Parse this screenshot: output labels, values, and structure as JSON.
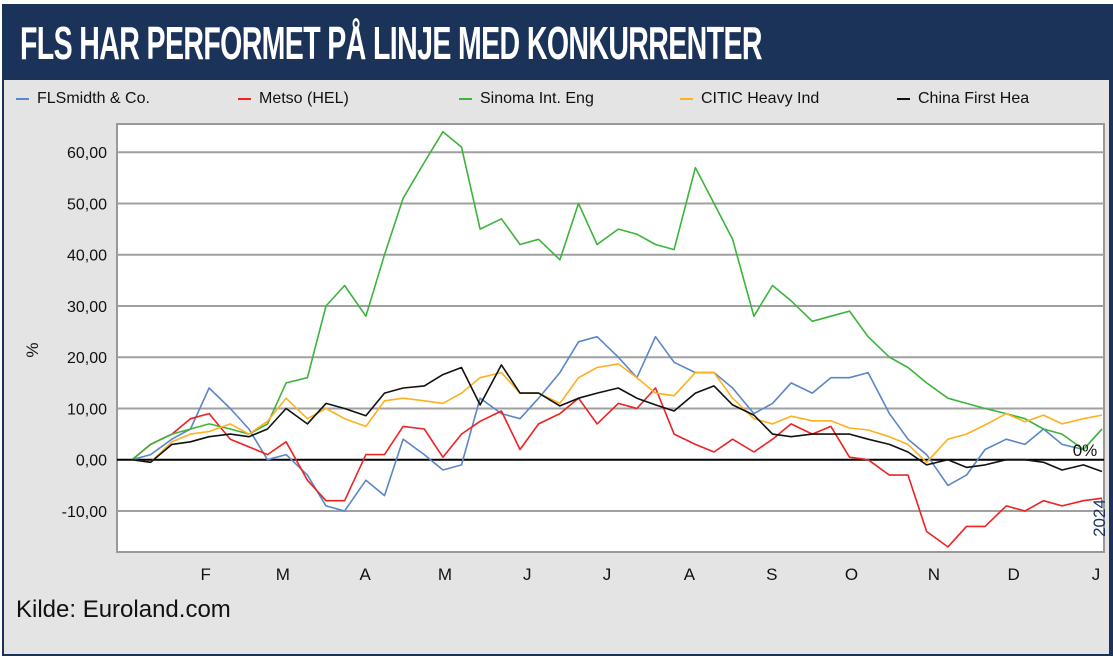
{
  "header": {
    "title": "FLS HAR PERFORMET PÅ LINJE MED KONKURRENTER"
  },
  "source": "Kilde: Euroland.com",
  "chart_data": {
    "type": "line",
    "title": "FLS HAR PERFORMET PÅ LINJE MED KONKURRENTER",
    "ylabel": "%",
    "xlabel": "",
    "year_label": "2024",
    "zero_label": "0%",
    "ylim": [
      -18,
      65.5
    ],
    "xlim": [
      "2024-01-02",
      "2025-01-01"
    ],
    "grid": "horizontal",
    "legend_placement": "top",
    "y_ticks": [
      -10,
      0,
      10,
      20,
      30,
      40,
      50,
      60
    ],
    "y_tick_labels": [
      "-10,00",
      "0,00",
      "10,00",
      "20,00",
      "30,00",
      "40,00",
      "50,00",
      "60,00"
    ],
    "x_ticks": [
      {
        "label": "F",
        "date": "2024-02-01"
      },
      {
        "label": "M",
        "date": "2024-03-01"
      },
      {
        "label": "A",
        "date": "2024-04-01"
      },
      {
        "label": "M",
        "date": "2024-05-01"
      },
      {
        "label": "J",
        "date": "2024-06-01"
      },
      {
        "label": "J",
        "date": "2024-07-01"
      },
      {
        "label": "A",
        "date": "2024-08-01"
      },
      {
        "label": "S",
        "date": "2024-09-01"
      },
      {
        "label": "O",
        "date": "2024-10-01"
      },
      {
        "label": "N",
        "date": "2024-11-01"
      },
      {
        "label": "D",
        "date": "2024-12-01"
      },
      {
        "label": "J",
        "date": "2025-01-01"
      }
    ],
    "x": [
      "2024-01-02",
      "2024-01-09",
      "2024-01-17",
      "2024-01-24",
      "2024-01-31",
      "2024-02-08",
      "2024-02-15",
      "2024-02-22",
      "2024-02-29",
      "2024-03-08",
      "2024-03-15",
      "2024-03-22",
      "2024-03-30",
      "2024-04-06",
      "2024-04-13",
      "2024-04-21",
      "2024-04-28",
      "2024-05-05",
      "2024-05-12",
      "2024-05-20",
      "2024-05-27",
      "2024-06-03",
      "2024-06-11",
      "2024-06-18",
      "2024-06-25",
      "2024-07-03",
      "2024-07-10",
      "2024-07-17",
      "2024-07-24",
      "2024-08-01",
      "2024-08-08",
      "2024-08-15",
      "2024-08-23",
      "2024-08-30",
      "2024-09-06",
      "2024-09-14",
      "2024-09-21",
      "2024-09-28",
      "2024-10-05",
      "2024-10-13",
      "2024-10-20",
      "2024-10-27",
      "2024-11-04",
      "2024-11-11",
      "2024-11-18",
      "2024-11-26",
      "2024-12-03",
      "2024-12-10",
      "2024-12-17",
      "2024-12-25",
      "2025-01-01"
    ],
    "series": [
      {
        "name": "FLSmidth & Co.",
        "color": "#5b86c8",
        "values": [
          0,
          1,
          4,
          6,
          14,
          10,
          6,
          0,
          1,
          -3,
          -9,
          -10,
          -4,
          -7,
          4,
          1,
          -2,
          -1,
          12,
          9,
          8,
          12,
          17,
          23,
          24,
          20,
          16,
          24,
          19,
          17,
          17,
          14,
          9,
          11,
          15,
          13,
          16,
          16,
          17,
          9,
          4,
          1,
          -5,
          -3,
          2,
          4,
          3,
          6,
          3,
          2,
          6
        ]
      },
      {
        "name": "Metso (HEL)",
        "color": "#ee2222",
        "values": [
          0,
          3,
          5,
          8,
          9,
          4,
          2.5,
          1,
          3.5,
          -4,
          -8,
          -8,
          1,
          1,
          6.5,
          6,
          0.5,
          5,
          7.5,
          9.5,
          2,
          7,
          9,
          12,
          7,
          11,
          10,
          14,
          5,
          3,
          1.5,
          4,
          1.5,
          4,
          7,
          5,
          6.5,
          0.5,
          0,
          -3,
          -3,
          -14,
          -17,
          -13,
          -13,
          -9,
          -10,
          -8,
          -9,
          -8,
          -7.5
        ]
      },
      {
        "name": "Sinoma Int. Eng",
        "color": "#3cb43c",
        "values": [
          0,
          3,
          5,
          6,
          7,
          6,
          5,
          7,
          15,
          16,
          30,
          34,
          28,
          40,
          51,
          58,
          64,
          61,
          45,
          47,
          42,
          43,
          39,
          50,
          42,
          45,
          44,
          42,
          41,
          57,
          50,
          43,
          28,
          34,
          31,
          27,
          28,
          29,
          24,
          20,
          18,
          15,
          12,
          11,
          10,
          9,
          8,
          6,
          5,
          2,
          6
        ]
      },
      {
        "name": "CITIC Heavy Ind",
        "color": "#ffb020",
        "values": [
          0,
          -0.5,
          3.5,
          5,
          5.5,
          7,
          5,
          7.5,
          12,
          8,
          10,
          8,
          6.5,
          11.5,
          12,
          11.5,
          11,
          13,
          16,
          17,
          13,
          13,
          11,
          16,
          18,
          18.7,
          16,
          13,
          12.5,
          17,
          17,
          12,
          8,
          7,
          8.5,
          7.6,
          7.6,
          6.2,
          5.8,
          4.5,
          3,
          -0.5,
          4,
          5,
          6.8,
          9,
          7.4,
          8.7,
          7,
          8,
          8.7
        ]
      },
      {
        "name": "China First Hea",
        "color": "#111111",
        "values": [
          0,
          -0.5,
          3,
          3.5,
          4.5,
          5,
          4.5,
          6,
          10,
          7,
          11,
          10,
          8.6,
          13,
          14,
          14.4,
          16.6,
          18,
          10.7,
          18.5,
          13,
          13,
          10.5,
          12,
          13,
          14,
          12,
          10.7,
          9.5,
          13,
          14.4,
          10.7,
          8.7,
          5,
          4.5,
          5,
          5,
          5,
          4,
          3,
          1.5,
          -1,
          0,
          -1.5,
          -1,
          0,
          0,
          -0.5,
          -2,
          -1,
          -2.3
        ]
      }
    ]
  }
}
